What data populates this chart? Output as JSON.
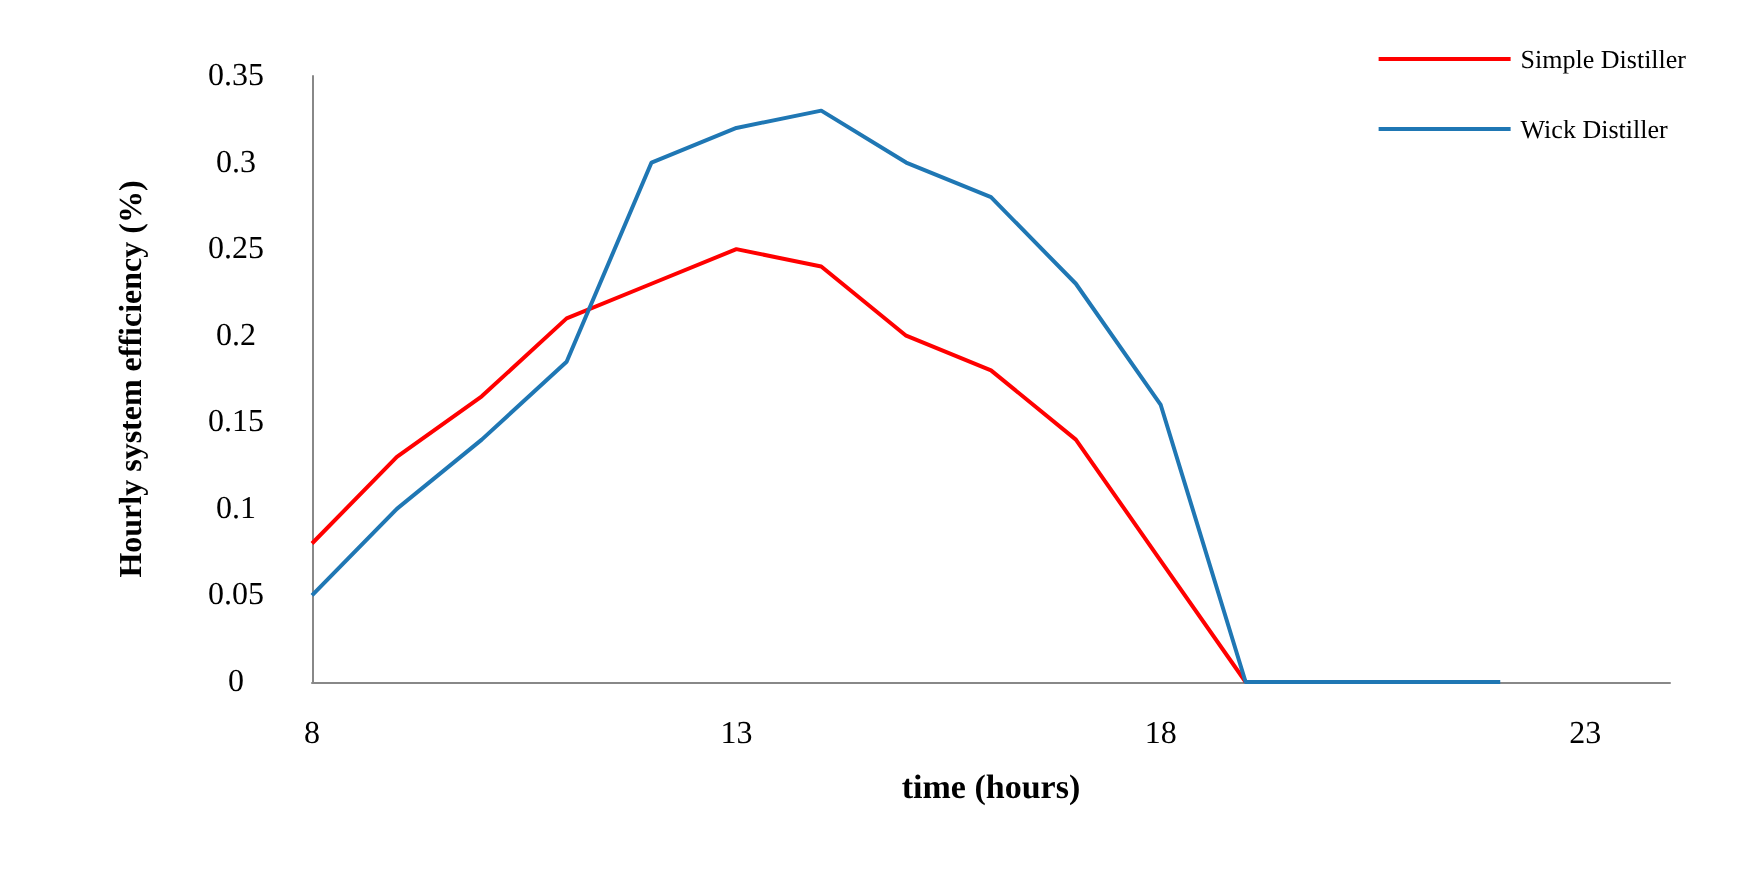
{
  "chart_data": {
    "type": "line",
    "xlabel": "time (hours)",
    "ylabel": "Hourly system efficiency (%)",
    "x": [
      8,
      9,
      10,
      11,
      12,
      13,
      14,
      15,
      16,
      17,
      18,
      19,
      20,
      21,
      22
    ],
    "series": [
      {
        "name": "Simple Distiller",
        "color": "#ff0000",
        "values": [
          0.08,
          0.13,
          0.165,
          0.21,
          0.23,
          0.25,
          0.24,
          0.2,
          0.18,
          0.14,
          0.07,
          0,
          null,
          null,
          null
        ]
      },
      {
        "name": "Wick Distiller",
        "color": "#1f77b4",
        "values": [
          0.05,
          0.1,
          0.14,
          0.185,
          0.3,
          0.32,
          0.33,
          0.3,
          0.28,
          0.23,
          0.16,
          0,
          0,
          0,
          0
        ]
      }
    ],
    "xlim": [
      8,
      24
    ],
    "xticks": [
      8,
      13,
      18,
      23
    ],
    "ylim": [
      0,
      0.35
    ],
    "yticks": [
      0,
      0.05,
      0.1,
      0.15,
      0.2,
      0.25,
      0.3,
      0.35
    ],
    "grid": false,
    "legend": "top right",
    "marker": "none",
    "line_style": "solid"
  }
}
